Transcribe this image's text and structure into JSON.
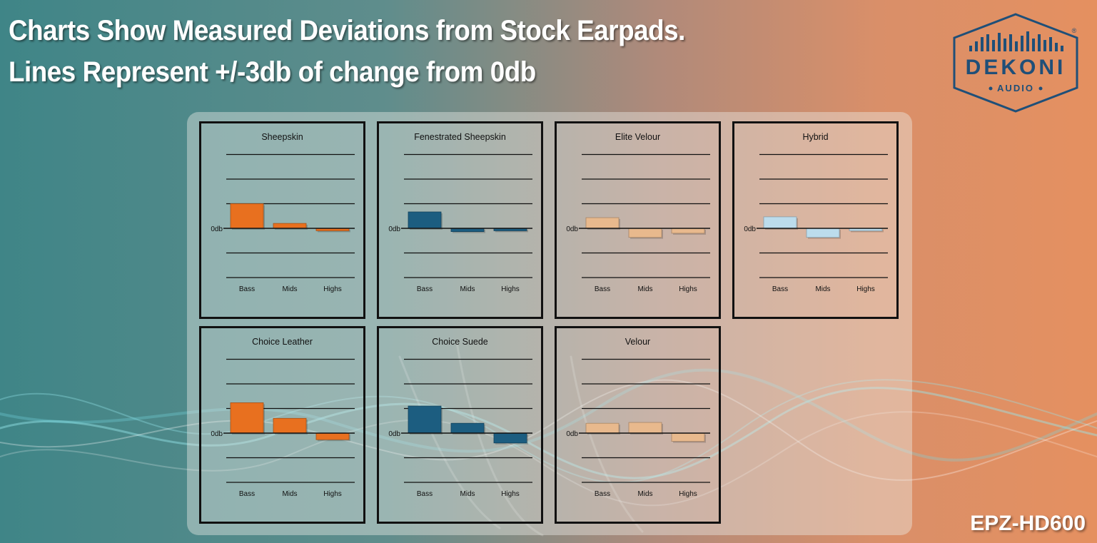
{
  "headline": {
    "line1": "Charts Show Measured Deviations from Stock Earpads.",
    "line2": "Lines Represent +/-3db of change from 0db"
  },
  "logo": {
    "brand": "DEKONI",
    "sub": "AUDIO",
    "mark": "®"
  },
  "model": "EPZ-HD600",
  "colors": {
    "orange": "#e8701f",
    "navy": "#1c5d80",
    "tan": "#e8b98d",
    "lightblue": "#bcdcec"
  },
  "chart_data": [
    {
      "type": "bar",
      "title": "Sheepskin",
      "categories": [
        "Bass",
        "Mids",
        "Highs"
      ],
      "values": [
        3,
        0.6,
        -0.3
      ],
      "color": "#e8701f",
      "zero_label": "0db",
      "gridlines": [
        9,
        6,
        3,
        -3,
        -6
      ],
      "ylim": [
        -6,
        9
      ]
    },
    {
      "type": "bar",
      "title": "Fenestrated Sheepskin",
      "categories": [
        "Bass",
        "Mids",
        "Highs"
      ],
      "values": [
        2,
        -0.4,
        -0.3
      ],
      "color": "#1c5d80",
      "zero_label": "0db",
      "gridlines": [
        9,
        6,
        3,
        -3,
        -6
      ],
      "ylim": [
        -6,
        9
      ]
    },
    {
      "type": "bar",
      "title": "Elite Velour",
      "categories": [
        "Bass",
        "Mids",
        "Highs"
      ],
      "values": [
        1.3,
        -1.1,
        -0.6
      ],
      "color": "#e8b98d",
      "zero_label": "0db",
      "gridlines": [
        9,
        6,
        3,
        -3,
        -6
      ],
      "ylim": [
        -6,
        9
      ]
    },
    {
      "type": "bar",
      "title": "Hybrid",
      "categories": [
        "Bass",
        "Mids",
        "Highs"
      ],
      "values": [
        1.4,
        -1.1,
        -0.3
      ],
      "color": "#bcdcec",
      "zero_label": "0db",
      "gridlines": [
        9,
        6,
        3,
        -3,
        -6
      ],
      "ylim": [
        -6,
        9
      ]
    },
    {
      "type": "bar",
      "title": "Choice Leather",
      "categories": [
        "Bass",
        "Mids",
        "Highs"
      ],
      "values": [
        3.7,
        1.8,
        -0.8
      ],
      "color": "#e8701f",
      "zero_label": "0db",
      "gridlines": [
        9,
        6,
        3,
        -3,
        -6
      ],
      "ylim": [
        -6,
        9
      ]
    },
    {
      "type": "bar",
      "title": "Choice Suede",
      "categories": [
        "Bass",
        "Mids",
        "Highs"
      ],
      "values": [
        3.3,
        1.2,
        -1.2
      ],
      "color": "#1c5d80",
      "zero_label": "0db",
      "gridlines": [
        9,
        6,
        3,
        -3,
        -6
      ],
      "ylim": [
        -6,
        9
      ]
    },
    {
      "type": "bar",
      "title": "Velour",
      "categories": [
        "Bass",
        "Mids",
        "Highs"
      ],
      "values": [
        1.2,
        1.3,
        -1.0
      ],
      "color": "#e8b98d",
      "zero_label": "0db",
      "gridlines": [
        9,
        6,
        3,
        -3,
        -6
      ],
      "ylim": [
        -6,
        9
      ]
    }
  ]
}
